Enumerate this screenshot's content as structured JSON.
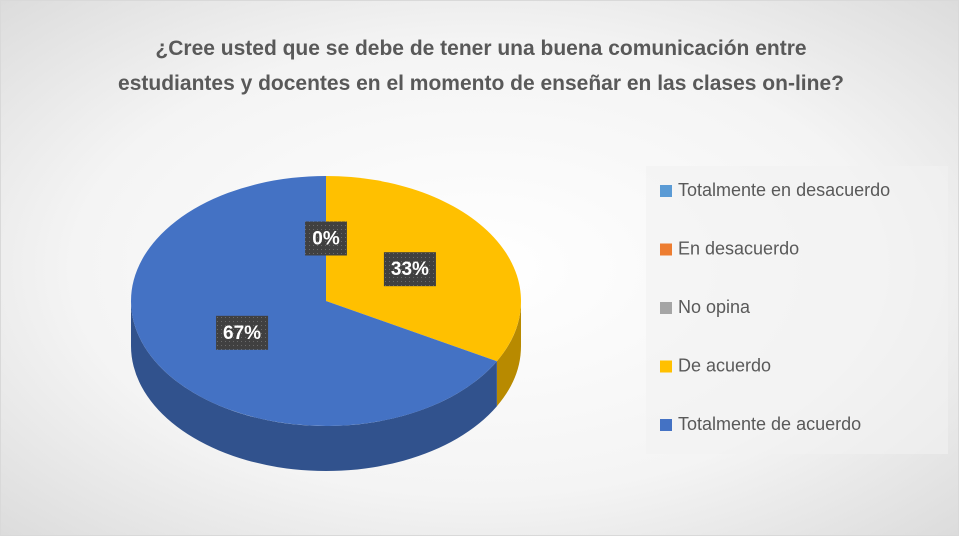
{
  "chart_data": {
    "type": "pie",
    "title": "¿Cree usted que se debe de tener una buena comunicación entre estudiantes y docentes en el momento de enseñar en las clases on-line?",
    "categories": [
      "Totalmente en desacuerdo",
      "En desacuerdo",
      "No opina",
      "De acuerdo",
      "Totalmente de acuerdo"
    ],
    "values": [
      0,
      0,
      0,
      33,
      67
    ],
    "value_labels": [
      "0%",
      "0%",
      "0%",
      "33%",
      "67%"
    ],
    "colors": [
      "#5b9bd5",
      "#ed7d31",
      "#a5a5a5",
      "#ffc000",
      "#4472c4"
    ],
    "legend": "right"
  }
}
